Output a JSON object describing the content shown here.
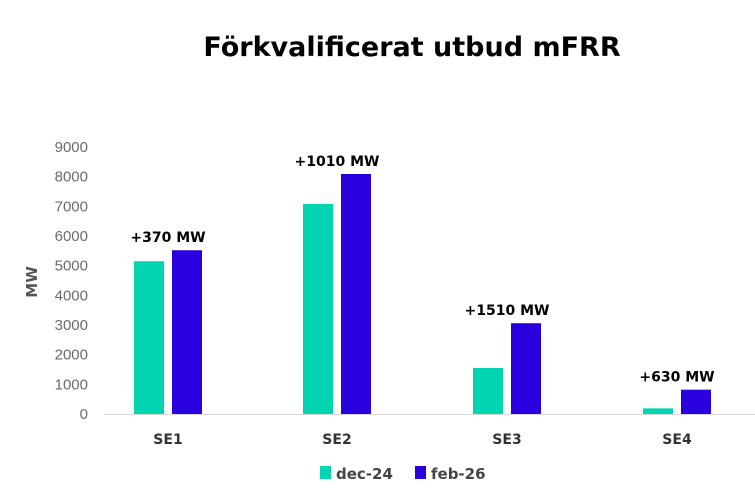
{
  "chart_data": {
    "type": "bar",
    "title": "Förkvalificerat utbud mFRR",
    "xlabel": "",
    "ylabel": "MW",
    "ylim": [
      0,
      9000
    ],
    "yticks": [
      0,
      1000,
      2000,
      3000,
      4000,
      5000,
      6000,
      7000,
      8000,
      9000
    ],
    "categories": [
      "SE1",
      "SE2",
      "SE3",
      "SE4"
    ],
    "series": [
      {
        "name": "dec-24",
        "color": "#00D4B0",
        "values": [
          5150,
          7080,
          1550,
          190
        ]
      },
      {
        "name": "feb-26",
        "color": "#2B00E0",
        "values": [
          5520,
          8090,
          3060,
          820
        ]
      }
    ],
    "annotations": [
      "+370 MW",
      "+1010 MW",
      "+1510 MW",
      "+630 MW"
    ],
    "grid": false,
    "legend": "bottom-center"
  }
}
